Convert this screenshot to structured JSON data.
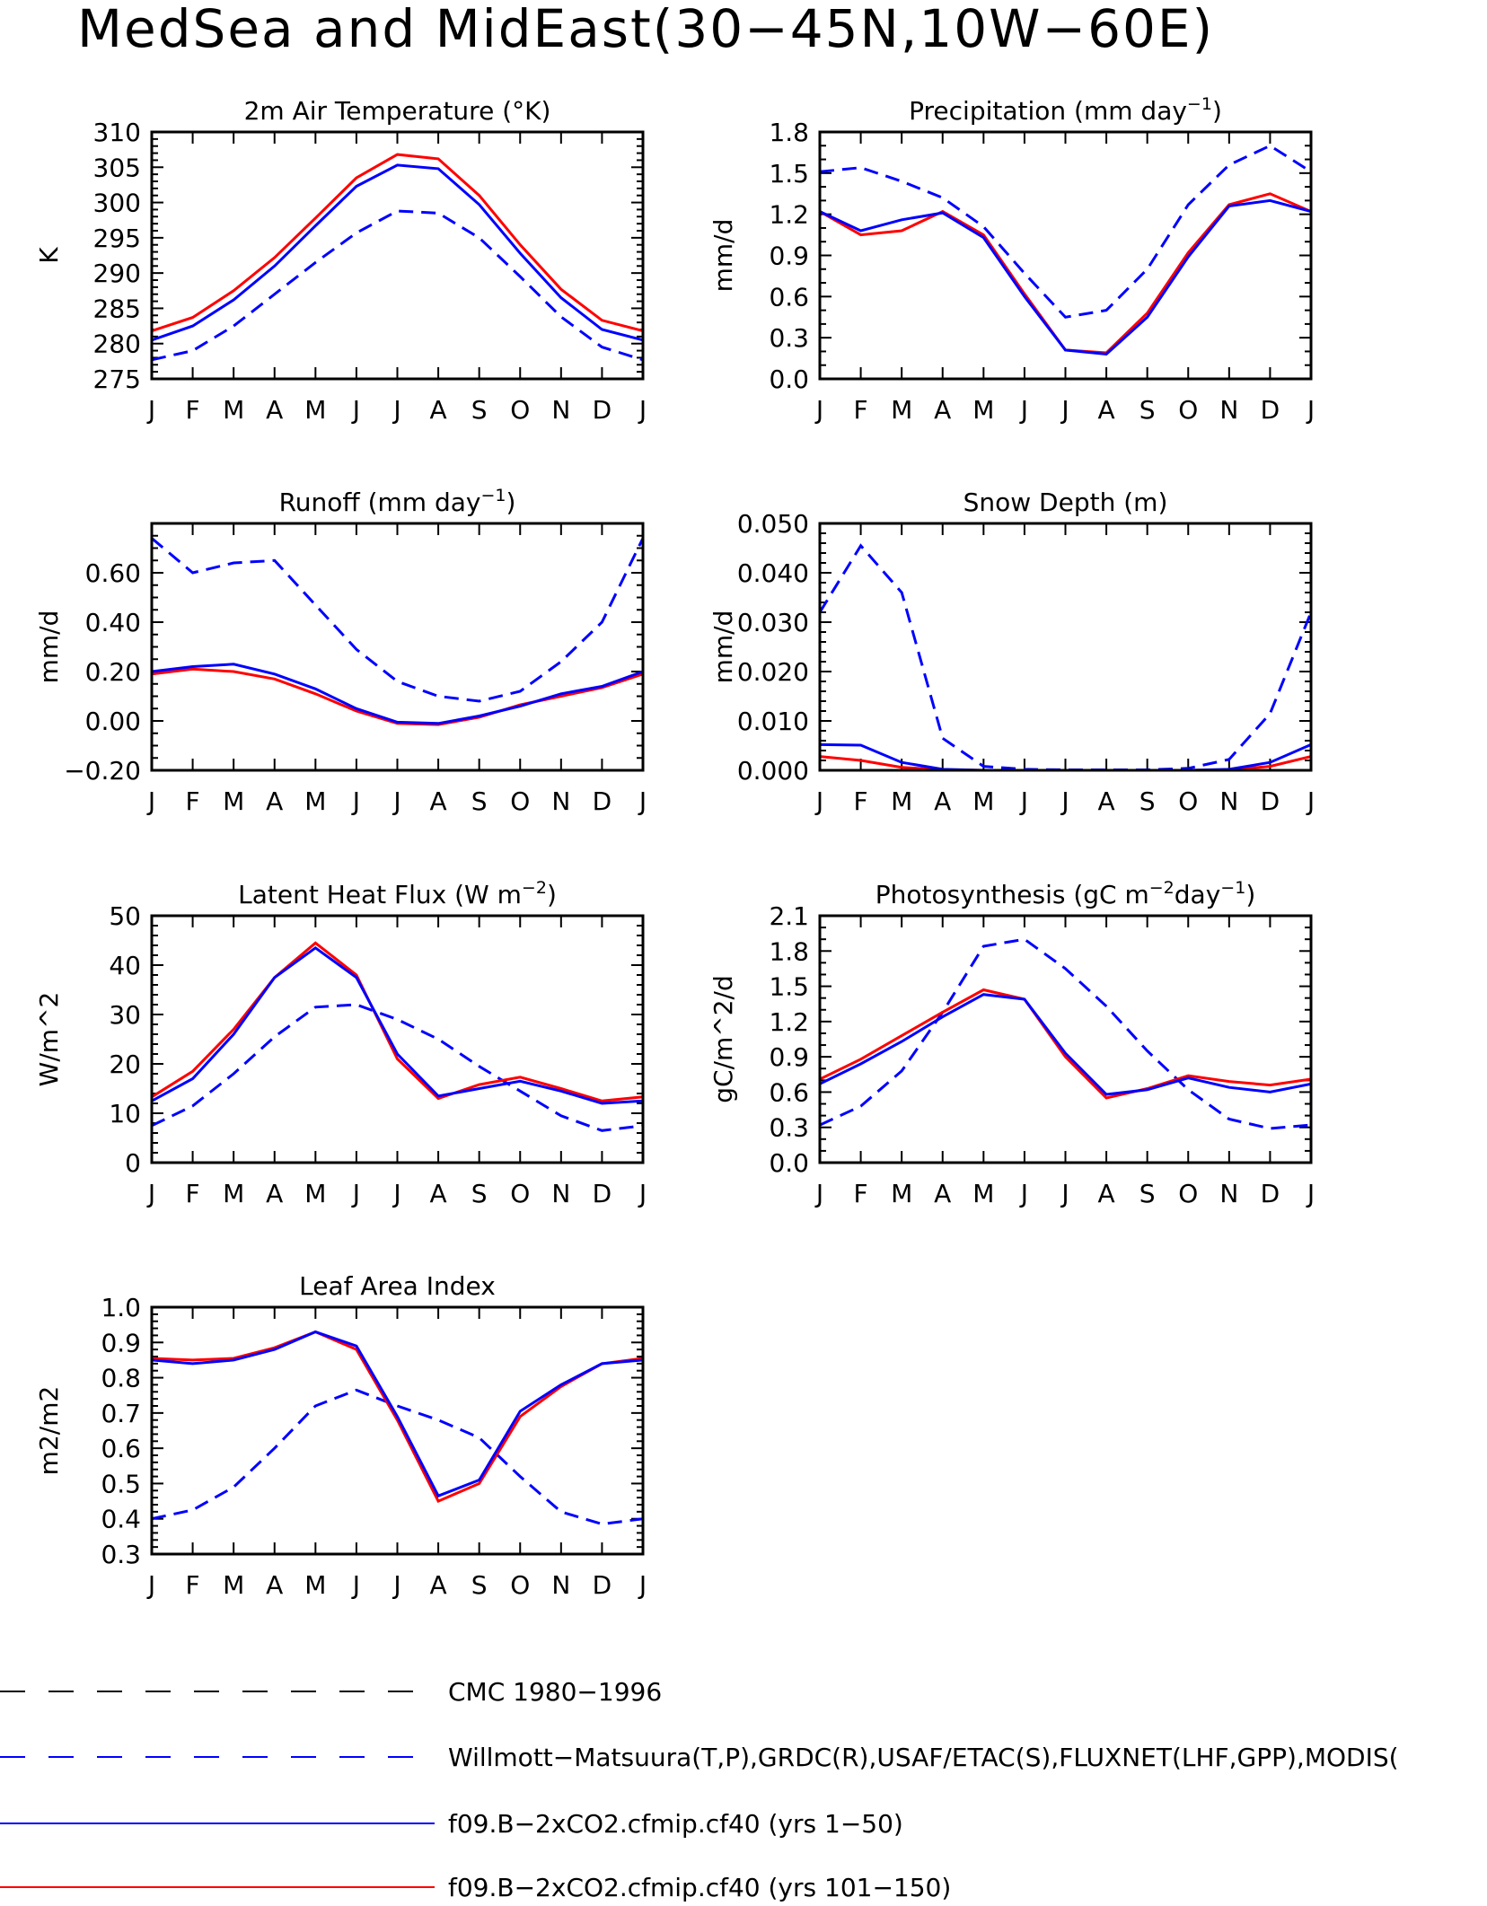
{
  "title": "MedSea and MidEast(30−45N,10W−60E)",
  "months": [
    "J",
    "F",
    "M",
    "A",
    "M",
    "J",
    "J",
    "A",
    "S",
    "O",
    "N",
    "D",
    "J"
  ],
  "colors": {
    "obs": "#0000ff",
    "run1": "#0000ff",
    "run2": "#ff0000",
    "legend_ref": "#000000"
  },
  "legend": [
    {
      "label": "CMC 1980−1996",
      "color": "#000000",
      "dash": "dashed"
    },
    {
      "label": "Willmott−Matsuura(T,P),GRDC(R),USAF/ETAC(S),FLUXNET(LHF,GPP),MODIS(",
      "color": "#0000ff",
      "dash": "dashed"
    },
    {
      "label": "f09.B−2xCO2.cfmip.cf40 (yrs 1−50)",
      "color": "#0000ff",
      "dash": "solid"
    },
    {
      "label": "f09.B−2xCO2.cfmip.cf40 (yrs 101−150)",
      "color": "#ff0000",
      "dash": "solid"
    }
  ],
  "chart_data": [
    {
      "type": "line",
      "title": "2m Air Temperature (°K)",
      "ylabel": "K",
      "xlabel": "",
      "ylim": [
        275,
        310
      ],
      "yticks": [
        "275",
        "280",
        "285",
        "290",
        "295",
        "300",
        "305",
        "310"
      ],
      "categories": [
        "J",
        "F",
        "M",
        "A",
        "M",
        "J",
        "J",
        "A",
        "S",
        "O",
        "N",
        "D",
        "J"
      ],
      "series": [
        {
          "role": "obs",
          "values": [
            277.7,
            279.0,
            282.5,
            287.0,
            291.5,
            295.7,
            298.8,
            298.5,
            295.0,
            289.5,
            283.8,
            279.5,
            277.7
          ]
        },
        {
          "role": "run1",
          "values": [
            280.5,
            282.5,
            286.2,
            291.0,
            296.7,
            302.3,
            305.3,
            304.8,
            299.7,
            292.8,
            286.5,
            282.0,
            280.5
          ]
        },
        {
          "role": "run2",
          "values": [
            281.8,
            283.7,
            287.5,
            292.2,
            297.8,
            303.5,
            306.8,
            306.2,
            301.0,
            294.0,
            287.7,
            283.3,
            281.8
          ]
        }
      ]
    },
    {
      "type": "line",
      "title": "Precipitation (mm day",
      "title_sup": "−1",
      "title_tail": ")",
      "ylabel": "mm/d",
      "xlabel": "",
      "ylim": [
        0,
        1.8
      ],
      "yticks": [
        "0.0",
        "0.3",
        "0.6",
        "0.9",
        "1.2",
        "1.5",
        "1.8"
      ],
      "categories": [
        "J",
        "F",
        "M",
        "A",
        "M",
        "J",
        "J",
        "A",
        "S",
        "O",
        "N",
        "D",
        "J"
      ],
      "series": [
        {
          "role": "obs",
          "values": [
            1.51,
            1.54,
            1.44,
            1.32,
            1.11,
            0.77,
            0.45,
            0.5,
            0.8,
            1.27,
            1.56,
            1.7,
            1.51
          ]
        },
        {
          "role": "run1",
          "values": [
            1.22,
            1.08,
            1.16,
            1.21,
            1.03,
            0.6,
            0.21,
            0.18,
            0.45,
            0.89,
            1.26,
            1.3,
            1.22
          ]
        },
        {
          "role": "run2",
          "values": [
            1.22,
            1.05,
            1.08,
            1.22,
            1.05,
            0.62,
            0.21,
            0.19,
            0.48,
            0.92,
            1.27,
            1.35,
            1.22
          ]
        }
      ]
    },
    {
      "type": "line",
      "title": "Runoff (mm day",
      "title_sup": "−1",
      "title_tail": ")",
      "ylabel": "mm/d",
      "xlabel": "",
      "ylim": [
        -0.2,
        0.8
      ],
      "yticks": [
        "−0.20",
        "0.00",
        "0.20",
        "0.40",
        "0.60"
      ],
      "categories": [
        "J",
        "F",
        "M",
        "A",
        "M",
        "J",
        "J",
        "A",
        "S",
        "O",
        "N",
        "D",
        "J"
      ],
      "series": [
        {
          "role": "obs",
          "values": [
            0.74,
            0.6,
            0.64,
            0.65,
            0.47,
            0.29,
            0.16,
            0.1,
            0.08,
            0.12,
            0.24,
            0.4,
            0.74
          ]
        },
        {
          "role": "run1",
          "values": [
            0.2,
            0.22,
            0.23,
            0.19,
            0.13,
            0.05,
            -0.005,
            -0.01,
            0.02,
            0.06,
            0.11,
            0.14,
            0.2
          ]
        },
        {
          "role": "run2",
          "values": [
            0.19,
            0.21,
            0.2,
            0.17,
            0.11,
            0.04,
            -0.01,
            -0.015,
            0.015,
            0.065,
            0.1,
            0.135,
            0.19
          ]
        }
      ]
    },
    {
      "type": "line",
      "title": "Snow Depth (m)",
      "ylabel": "mm/d",
      "xlabel": "",
      "ylim": [
        0,
        0.05
      ],
      "yticks": [
        "0.000",
        "0.010",
        "0.020",
        "0.030",
        "0.040",
        "0.050"
      ],
      "categories": [
        "J",
        "F",
        "M",
        "A",
        "M",
        "J",
        "J",
        "A",
        "S",
        "O",
        "N",
        "D",
        "J"
      ],
      "series": [
        {
          "role": "obs",
          "values": [
            0.032,
            0.0455,
            0.036,
            0.0065,
            0.0008,
            0.0002,
            0.0001,
            0.0001,
            0.0001,
            0.0004,
            0.0022,
            0.0115,
            0.032
          ]
        },
        {
          "role": "run1",
          "values": [
            0.0052,
            0.0051,
            0.0016,
            0.0002,
            0.0,
            0.0,
            0.0,
            0.0,
            0.0,
            0.0,
            0.0002,
            0.0016,
            0.0052
          ]
        },
        {
          "role": "run2",
          "values": [
            0.0028,
            0.002,
            0.0006,
            0.0001,
            0.0,
            0.0,
            0.0,
            0.0,
            0.0,
            0.0,
            0.0001,
            0.0008,
            0.0028
          ]
        }
      ]
    },
    {
      "type": "line",
      "title": "Latent Heat Flux (W m",
      "title_sup": "−2",
      "title_tail": ")",
      "ylabel": "W/m^2",
      "xlabel": "",
      "ylim": [
        0,
        50
      ],
      "yticks": [
        "0",
        "10",
        "20",
        "30",
        "40",
        "50"
      ],
      "categories": [
        "J",
        "F",
        "M",
        "A",
        "M",
        "J",
        "J",
        "A",
        "S",
        "O",
        "N",
        "D",
        "J"
      ],
      "series": [
        {
          "role": "obs",
          "values": [
            7.5,
            11.5,
            18.0,
            25.5,
            31.5,
            32.0,
            29.0,
            25.0,
            19.5,
            14.5,
            9.5,
            6.5,
            7.5
          ]
        },
        {
          "role": "run1",
          "values": [
            12.5,
            17.0,
            26.0,
            37.5,
            43.5,
            37.5,
            22.0,
            13.5,
            15.0,
            16.5,
            14.5,
            12.0,
            12.5
          ]
        },
        {
          "role": "run2",
          "values": [
            13.3,
            18.5,
            27.0,
            37.5,
            44.5,
            38.0,
            21.0,
            13.0,
            15.8,
            17.3,
            15.0,
            12.5,
            13.3
          ]
        }
      ]
    },
    {
      "type": "line",
      "title": "Photosynthesis (gC m",
      "title_sup": "−2",
      "title_mid": "day",
      "title_sup2": "−1",
      "title_tail": ")",
      "ylabel": "gC/m^2/d",
      "xlabel": "",
      "ylim": [
        0,
        2.1
      ],
      "yticks": [
        "0.0",
        "0.3",
        "0.6",
        "0.9",
        "1.2",
        "1.5",
        "1.8",
        "2.1"
      ],
      "categories": [
        "J",
        "F",
        "M",
        "A",
        "M",
        "J",
        "J",
        "A",
        "S",
        "O",
        "N",
        "D",
        "J"
      ],
      "series": [
        {
          "role": "obs",
          "values": [
            0.32,
            0.48,
            0.78,
            1.28,
            1.84,
            1.9,
            1.65,
            1.33,
            0.95,
            0.62,
            0.37,
            0.29,
            0.32
          ]
        },
        {
          "role": "run1",
          "values": [
            0.67,
            0.84,
            1.03,
            1.24,
            1.43,
            1.39,
            0.93,
            0.58,
            0.62,
            0.72,
            0.64,
            0.6,
            0.67
          ]
        },
        {
          "role": "run2",
          "values": [
            0.71,
            0.88,
            1.08,
            1.28,
            1.47,
            1.39,
            0.9,
            0.55,
            0.63,
            0.74,
            0.69,
            0.66,
            0.71
          ]
        }
      ]
    },
    {
      "type": "line",
      "title": "Leaf Area Index",
      "ylabel": "m2/m2",
      "xlabel": "",
      "ylim": [
        0.3,
        1.0
      ],
      "yticks": [
        "0.3",
        "0.4",
        "0.5",
        "0.6",
        "0.7",
        "0.8",
        "0.9",
        "1.0"
      ],
      "categories": [
        "J",
        "F",
        "M",
        "A",
        "M",
        "J",
        "J",
        "A",
        "S",
        "O",
        "N",
        "D",
        "J"
      ],
      "series": [
        {
          "role": "obs",
          "values": [
            0.4,
            0.425,
            0.49,
            0.6,
            0.72,
            0.765,
            0.72,
            0.68,
            0.63,
            0.52,
            0.42,
            0.385,
            0.4
          ]
        },
        {
          "role": "run1",
          "values": [
            0.85,
            0.84,
            0.85,
            0.88,
            0.93,
            0.89,
            0.69,
            0.465,
            0.51,
            0.705,
            0.78,
            0.84,
            0.85
          ]
        },
        {
          "role": "run2",
          "values": [
            0.855,
            0.85,
            0.855,
            0.885,
            0.93,
            0.88,
            0.68,
            0.45,
            0.5,
            0.69,
            0.775,
            0.84,
            0.855
          ]
        }
      ]
    }
  ]
}
